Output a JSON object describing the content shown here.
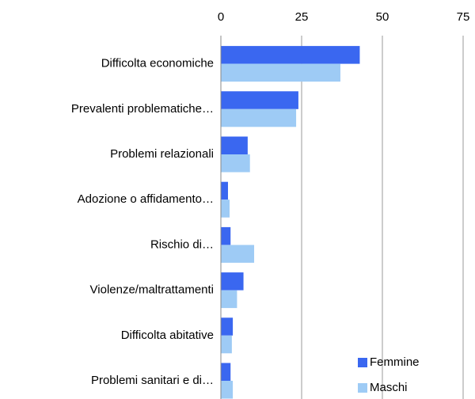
{
  "chart_data": {
    "type": "bar",
    "orientation": "horizontal",
    "categories": [
      "Difficolta economiche",
      "Prevalenti problematiche…",
      "Problemi relazionali",
      "Adozione o affidamento…",
      "Rischio di…",
      "Violenze/maltrattamenti",
      "Difficolta abitative",
      "Problemi sanitari e di…"
    ],
    "series": [
      {
        "name": "Femmine",
        "color": "#3a67f0",
        "values": [
          43,
          24,
          8.3,
          2.2,
          3,
          7,
          3.7,
          3
        ]
      },
      {
        "name": "Maschi",
        "color": "#9ecbf5",
        "values": [
          37,
          23.3,
          9,
          2.7,
          10.3,
          5,
          3.4,
          3.7
        ]
      }
    ],
    "xlim": [
      0,
      75
    ],
    "xticks": [
      0,
      25,
      50,
      75
    ],
    "grid": true,
    "legend": "lower right"
  }
}
